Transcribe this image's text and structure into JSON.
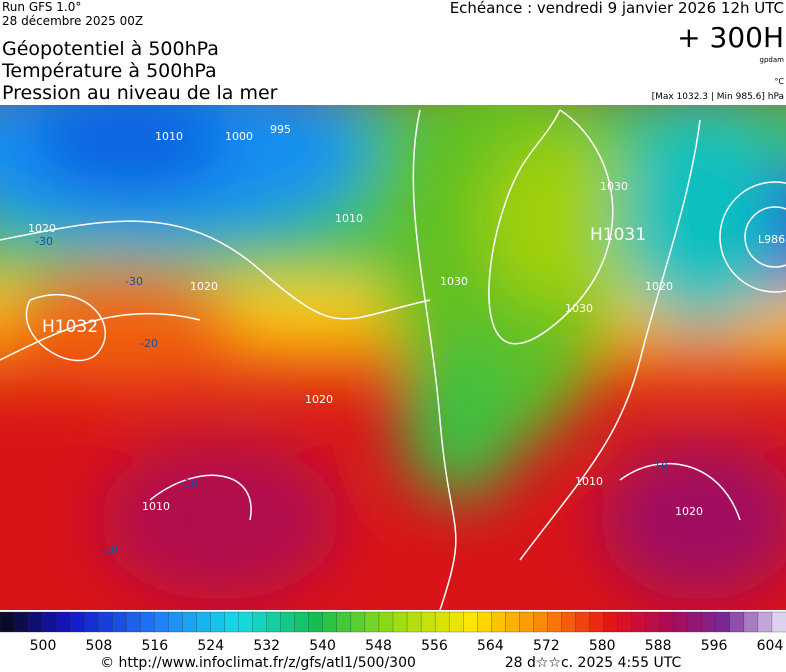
{
  "header": {
    "run": "Run GFS 1.0°",
    "date": "28 décembre 2025 00Z",
    "titles": [
      "Géopotentiel à 500hPa",
      "Température à 500hPa",
      "Pression au niveau de la mer"
    ],
    "valid": "Echéance : vendredi 9 janvier 2026 12h UTC",
    "step": "+ 300H",
    "unit_geo": "gpdam",
    "unit_temp": "°C",
    "range": "[Max 1032.3 | Min 985.6] hPa"
  },
  "map": {
    "labels": [
      "995",
      "1000",
      "1010",
      "1010",
      "1020",
      "1020",
      "1020",
      "1030",
      "1030",
      "1030",
      "1010",
      "1020",
      "1020",
      "1010"
    ],
    "highs": [
      "H1032",
      "H1031"
    ],
    "lows": [
      "L986"
    ],
    "temps": [
      "-30",
      "-30",
      "-20",
      "-10",
      "-10",
      "-10"
    ]
  },
  "colorbar": {
    "labels": [
      "500",
      "508",
      "516",
      "524",
      "532",
      "540",
      "548",
      "556",
      "564",
      "572",
      "580",
      "588",
      "596",
      "604"
    ]
  },
  "footer": {
    "source": "© http://www.infoclimat.fr/z/gfs/atl1/500/300",
    "time": "28 d☆☆c. 2025  4:55 UTC"
  }
}
